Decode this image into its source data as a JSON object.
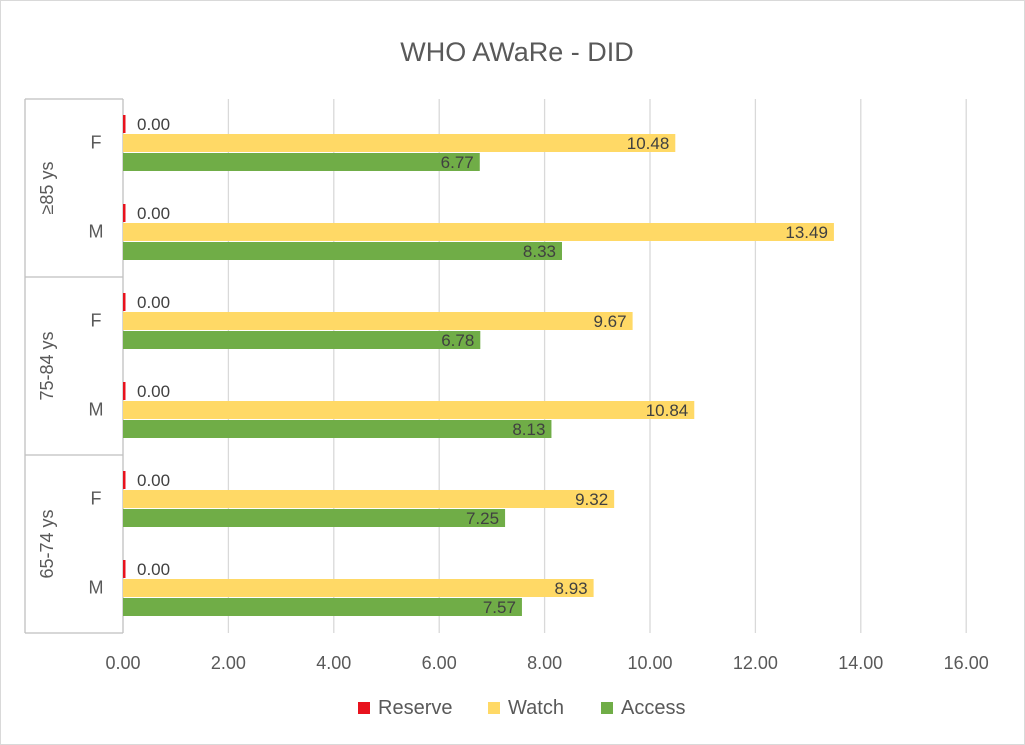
{
  "chart_data": {
    "type": "bar",
    "orientation": "horizontal",
    "title": "WHO AWaRe - DID",
    "xlim": [
      0,
      16
    ],
    "x_ticks": [
      "0.00",
      "2.00",
      "4.00",
      "6.00",
      "8.00",
      "10.00",
      "12.00",
      "14.00",
      "16.00"
    ],
    "x_tick_values": [
      0,
      2,
      4,
      6,
      8,
      10,
      12,
      14,
      16
    ],
    "grid": "vertical",
    "legend_position": "bottom",
    "groups": [
      {
        "label": "≥85 ys",
        "categories": [
          {
            "label": "F",
            "Reserve": 0.0,
            "Watch": 10.48,
            "Access": 6.77
          },
          {
            "label": "M",
            "Reserve": 0.0,
            "Watch": 13.49,
            "Access": 8.33
          }
        ]
      },
      {
        "label": "75-84 ys",
        "categories": [
          {
            "label": "F",
            "Reserve": 0.0,
            "Watch": 9.67,
            "Access": 6.78
          },
          {
            "label": "M",
            "Reserve": 0.0,
            "Watch": 10.84,
            "Access": 8.13
          }
        ]
      },
      {
        "label": "65-74 ys",
        "categories": [
          {
            "label": "F",
            "Reserve": 0.0,
            "Watch": 9.32,
            "Access": 7.25
          },
          {
            "label": "M",
            "Reserve": 0.0,
            "Watch": 8.93,
            "Access": 7.57
          }
        ]
      }
    ],
    "series": [
      {
        "name": "Reserve",
        "color": "#e8121d"
      },
      {
        "name": "Watch",
        "color": "#ffd966"
      },
      {
        "name": "Access",
        "color": "#70ad47"
      }
    ]
  }
}
